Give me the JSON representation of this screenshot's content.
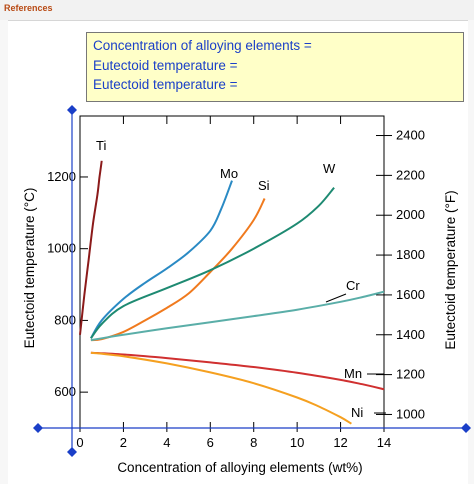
{
  "header": {
    "references_label": "References"
  },
  "info_box": {
    "lines": [
      "Concentration of alloying elements =",
      "Eutectoid temperature =",
      "Eutectoid temperature ="
    ]
  },
  "colors": {
    "Ti": "#8b1a1a",
    "Mo": "#2a8ac4",
    "Si": "#f07a1e",
    "W": "#1e8a72",
    "Cr": "#5aaea8",
    "Mn": "#d03030",
    "Ni": "#f5a020",
    "marker": "#1a3fc8",
    "info_text": "#1a3fc8",
    "info_bg": "#ffffc8"
  },
  "chart_data": {
    "type": "line",
    "xlabel": "Concentration of alloying elements (wt%)",
    "ylabel": "Eutectoid temperature (°C)",
    "y2label": "Eutectoid temperature (°F)",
    "xlim": [
      0,
      14
    ],
    "ylim": [
      500,
      1370
    ],
    "y2lim": [
      932,
      2498
    ],
    "xticks": [
      0,
      2,
      4,
      6,
      8,
      10,
      12,
      14
    ],
    "yticks": [
      600,
      800,
      1000,
      1200
    ],
    "y2ticks": [
      1000,
      1200,
      1400,
      1600,
      1800,
      2000,
      2200,
      2400
    ],
    "grid": false,
    "series": [
      {
        "name": "Ti",
        "x": [
          0,
          0.2,
          0.4,
          0.6,
          0.8,
          0.9,
          1.0
        ],
        "y": [
          760,
          870,
          970,
          1070,
          1150,
          1200,
          1245
        ]
      },
      {
        "name": "Mo",
        "x": [
          0.5,
          1,
          2,
          3,
          4,
          5,
          6,
          6.5,
          7
        ],
        "y": [
          750,
          800,
          860,
          905,
          945,
          990,
          1050,
          1110,
          1190
        ]
      },
      {
        "name": "Si",
        "x": [
          0.5,
          1,
          2,
          3,
          4,
          5,
          6,
          7,
          8,
          8.5
        ],
        "y": [
          745,
          748,
          768,
          800,
          835,
          875,
          935,
          1000,
          1080,
          1140
        ]
      },
      {
        "name": "W",
        "x": [
          0.5,
          1,
          2,
          4,
          6,
          8,
          10,
          11,
          11.7
        ],
        "y": [
          750,
          790,
          840,
          890,
          940,
          1000,
          1070,
          1120,
          1170
        ]
      },
      {
        "name": "Cr",
        "x": [
          0.5,
          1,
          2,
          4,
          6,
          8,
          10,
          12,
          13,
          14
        ],
        "y": [
          745,
          750,
          760,
          778,
          795,
          812,
          830,
          852,
          865,
          880
        ]
      },
      {
        "name": "Mn",
        "x": [
          0.5,
          2,
          4,
          6,
          8,
          10,
          12,
          13,
          14
        ],
        "y": [
          710,
          705,
          695,
          683,
          670,
          654,
          634,
          622,
          608
        ]
      },
      {
        "name": "Ni",
        "x": [
          0.5,
          2,
          4,
          6,
          8,
          10,
          11,
          12,
          12.5
        ],
        "y": [
          710,
          700,
          680,
          655,
          625,
          585,
          560,
          530,
          512
        ]
      }
    ],
    "labels": [
      {
        "text": "Ti",
        "series": "Ti"
      },
      {
        "text": "Mo",
        "series": "Mo"
      },
      {
        "text": "Si",
        "series": "Si"
      },
      {
        "text": "W",
        "series": "W"
      },
      {
        "text": "Cr",
        "series": "Cr"
      },
      {
        "text": "Mn",
        "series": "Mn"
      },
      {
        "text": "Ni",
        "series": "Ni"
      }
    ]
  }
}
